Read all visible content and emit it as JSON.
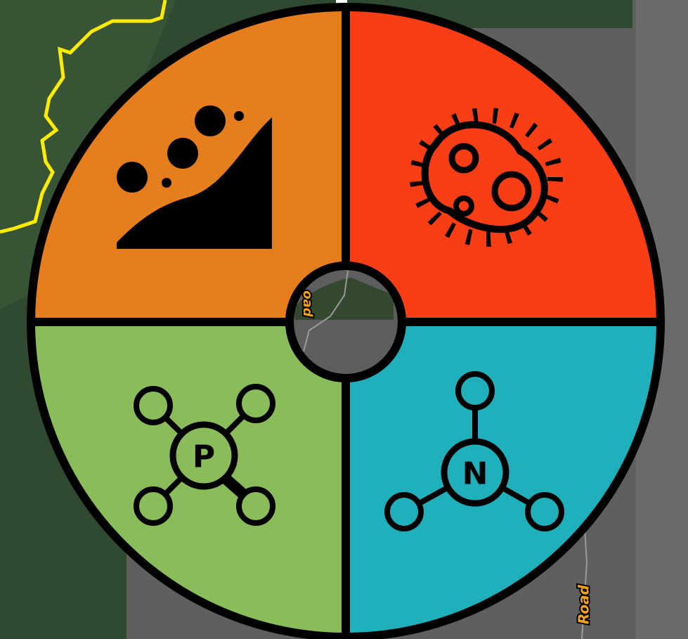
{
  "menu": {
    "items": [
      {
        "label": "P"
      },
      {
        "label": "N"
      }
    ]
  },
  "map": {
    "road_labels": [
      "Road",
      "oad"
    ]
  }
}
